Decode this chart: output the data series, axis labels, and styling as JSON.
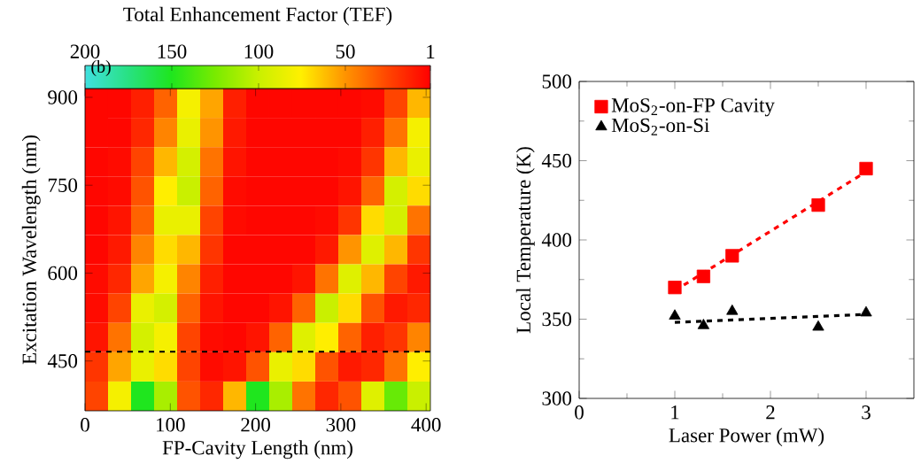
{
  "chart_data": [
    {
      "type": "heatmap",
      "xlabel": "FP-Cavity Length (nm)",
      "ylabel": "Excitation Wavelength (nm)",
      "clabel": "Total Enhancement Factor (TEF)",
      "annotations": [
        "(b)"
      ],
      "x": [
        13.5,
        40.5,
        67.5,
        94.5,
        121.5,
        148.5,
        175.5,
        202.5,
        229.5,
        256.5,
        283.5,
        310.5,
        337.5,
        364.5,
        391.5
      ],
      "y": [
        890,
        840,
        790,
        740,
        690,
        640,
        590,
        540,
        490,
        440,
        390
      ],
      "cells": [
        [
          3,
          3,
          12,
          35,
          80,
          55,
          12,
          3,
          3,
          3,
          3,
          3,
          5,
          25,
          60
        ],
        [
          3,
          3,
          15,
          45,
          85,
          50,
          10,
          3,
          3,
          3,
          3,
          3,
          12,
          40,
          80
        ],
        [
          3,
          5,
          25,
          60,
          95,
          40,
          8,
          3,
          3,
          3,
          3,
          5,
          20,
          60,
          85
        ],
        [
          3,
          5,
          30,
          75,
          100,
          35,
          5,
          3,
          3,
          3,
          3,
          8,
          35,
          95,
          70
        ],
        [
          3,
          8,
          35,
          85,
          85,
          25,
          5,
          3,
          3,
          3,
          5,
          20,
          70,
          95,
          40
        ],
        [
          3,
          10,
          45,
          70,
          60,
          20,
          3,
          3,
          3,
          3,
          10,
          50,
          90,
          60,
          20
        ],
        [
          5,
          15,
          55,
          80,
          45,
          12,
          3,
          3,
          3,
          8,
          40,
          90,
          60,
          25,
          10
        ],
        [
          5,
          25,
          85,
          95,
          35,
          8,
          3,
          3,
          8,
          35,
          100,
          70,
          30,
          10,
          15
        ],
        [
          8,
          40,
          95,
          80,
          25,
          5,
          3,
          8,
          35,
          90,
          75,
          35,
          12,
          20,
          45
        ],
        [
          20,
          55,
          85,
          70,
          25,
          5,
          8,
          30,
          85,
          70,
          30,
          10,
          15,
          40,
          75
        ],
        [
          25,
          80,
          150,
          110,
          30,
          15,
          60,
          150,
          110,
          40,
          15,
          30,
          90,
          130,
          100
        ]
      ],
      "clim": [
        200,
        1
      ],
      "cticks": [
        200,
        150,
        100,
        50,
        1
      ],
      "xlim": [
        0,
        405
      ],
      "xticks": [
        0,
        100,
        200,
        300,
        400
      ],
      "ylim": [
        365,
        915
      ],
      "yticks": [
        450,
        600,
        750,
        900
      ],
      "ref_lines": [
        {
          "axis": "y",
          "value": 466,
          "color": "#000000",
          "line_style": "dashed"
        }
      ]
    },
    {
      "type": "scatter",
      "xlabel": "Laser Power (mW)",
      "ylabel": "Local Temperature (K)",
      "xlim": [
        0,
        3.5
      ],
      "xticks": [
        0,
        1,
        2,
        3
      ],
      "ylim": [
        300,
        500
      ],
      "yticks": [
        300,
        350,
        400,
        450,
        500
      ],
      "legend": "top left",
      "series": [
        {
          "name": "MoS$_{2}$-on-FP Cavity",
          "type": "scatter",
          "marker": "square",
          "color": "#ff0000",
          "x": [
            1,
            1.3,
            1.6,
            2.5,
            3
          ],
          "values": [
            370,
            377,
            390,
            422,
            445
          ]
        },
        {
          "name": "MoS$_{2}$-on-Si",
          "type": "scatter",
          "marker": "triangle",
          "color": "#000000",
          "x": [
            1,
            1.3,
            1.6,
            2.5,
            3
          ],
          "values": [
            352,
            346,
            355,
            345,
            354
          ]
        },
        {
          "type": "line",
          "line_style": "dashed",
          "color": "#ff0000",
          "x": [
            1,
            3
          ],
          "values": [
            368,
            443
          ]
        },
        {
          "type": "line",
          "line_style": "dashed",
          "color": "#000000",
          "x": [
            1,
            3
          ],
          "values": [
            348,
            353
          ]
        }
      ]
    }
  ]
}
